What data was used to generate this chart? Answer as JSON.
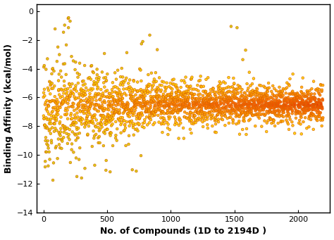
{
  "title": "",
  "xlabel": "No. of Compounds (1D to 2194D )",
  "ylabel": "Binding Affinity (kcal/mol)",
  "xlim": [
    -50,
    2250
  ],
  "ylim": [
    -14,
    0.5
  ],
  "yticks": [
    0,
    -2,
    -4,
    -6,
    -8,
    -10,
    -12,
    -14
  ],
  "xticks": [
    0,
    500,
    1000,
    1500,
    2000
  ],
  "background_color": "#ffffff",
  "seed": 42,
  "n_points": 2194,
  "xlabel_fontsize": 9,
  "ylabel_fontsize": 9,
  "tick_fontsize": 8
}
